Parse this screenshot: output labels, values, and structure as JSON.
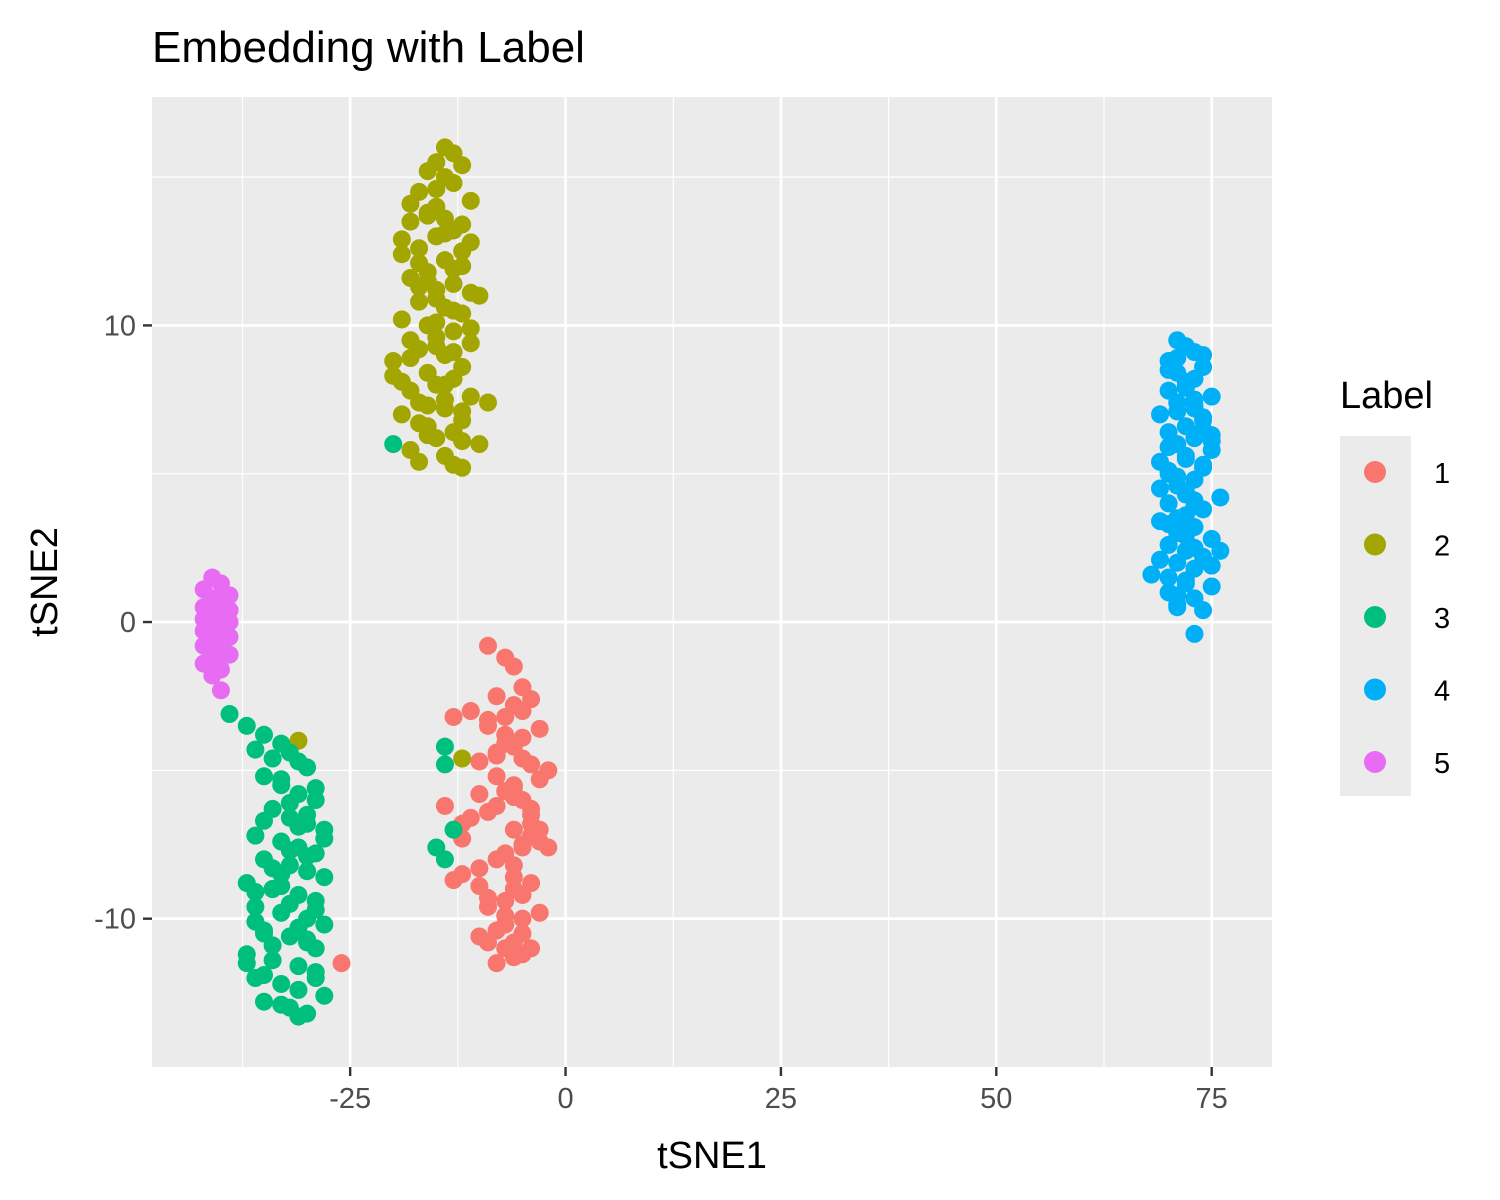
{
  "chart_data": {
    "type": "scatter",
    "title": "Embedding with Label",
    "xlabel": "tSNE1",
    "ylabel": "tSNE2",
    "xlim": [
      -48,
      82
    ],
    "ylim": [
      -15,
      17.7
    ],
    "x_ticks": [
      -25,
      0,
      25,
      50,
      75
    ],
    "x_tick_labels": [
      "-25",
      "0",
      "25",
      "50",
      "75"
    ],
    "y_ticks": [
      -10,
      0,
      10
    ],
    "y_tick_labels": [
      "-10",
      "0",
      "10"
    ],
    "grid": true,
    "legend": {
      "title": "Label",
      "position": "right",
      "entries": [
        {
          "label": "1",
          "color": "#F8766D"
        },
        {
          "label": "2",
          "color": "#A3A500"
        },
        {
          "label": "3",
          "color": "#00BF7D"
        },
        {
          "label": "4",
          "color": "#00B0F6"
        },
        {
          "label": "5",
          "color": "#E76BF3"
        }
      ]
    },
    "series": [
      {
        "name": "1",
        "color": "#F8766D",
        "x": [
          -9,
          -7,
          -6,
          -5,
          -8,
          -6,
          -4,
          -5,
          -7,
          -9,
          -3,
          -5,
          -6,
          -8,
          -10,
          -4,
          -2,
          -3,
          -6,
          -7,
          -5,
          -8,
          -9,
          -11,
          -12,
          -6,
          -4,
          -3,
          -5,
          -7,
          -8,
          -10,
          -12,
          -13,
          -4,
          -6,
          -5,
          -7,
          -9,
          -3,
          -2,
          -4,
          -6,
          -8,
          -5,
          -7,
          -9,
          -11,
          -4,
          -6,
          -3,
          -5,
          -7,
          -8,
          -10,
          -6,
          -4,
          -5,
          -7,
          -9,
          -8,
          -6,
          -5,
          -7,
          -9,
          -10,
          -6,
          -5,
          -4,
          -6,
          -8,
          -7,
          -13,
          -14,
          -12,
          -10,
          -26
        ],
        "y": [
          -0.8,
          -1.2,
          -1.5,
          -2.2,
          -2.5,
          -2.8,
          -2.6,
          -3.0,
          -3.2,
          -3.5,
          -3.6,
          -3.9,
          -4.2,
          -4.4,
          -4.7,
          -4.8,
          -5.0,
          -5.3,
          -5.5,
          -5.7,
          -6.0,
          -6.2,
          -6.4,
          -6.6,
          -6.8,
          -7.0,
          -7.2,
          -7.4,
          -7.6,
          -7.8,
          -8.0,
          -8.3,
          -8.5,
          -8.7,
          -8.8,
          -9.0,
          -9.2,
          -9.4,
          -9.6,
          -7.0,
          -7.6,
          -6.5,
          -5.9,
          -5.2,
          -4.6,
          -3.8,
          -3.3,
          -3.0,
          -6.8,
          -8.6,
          -9.8,
          -10.0,
          -10.2,
          -10.4,
          -10.6,
          -10.8,
          -11.0,
          -11.2,
          -11.0,
          -10.8,
          -11.5,
          -11.3,
          -10.5,
          -9.9,
          -9.3,
          -8.9,
          -8.2,
          -7.5,
          -6.3,
          -5.6,
          -4.5,
          -4.1,
          -3.2,
          -6.2,
          -7.3,
          -5.8,
          -11.5
        ]
      },
      {
        "name": "2",
        "color": "#A3A500",
        "x": [
          -14,
          -13,
          -15,
          -12,
          -16,
          -14,
          -13,
          -17,
          -11,
          -15,
          -16,
          -14,
          -12,
          -18,
          -13,
          -15,
          -11,
          -17,
          -19,
          -14,
          -12,
          -16,
          -18,
          -13,
          -15,
          -10,
          -17,
          -14,
          -12,
          -19,
          -16,
          -13,
          -15,
          -18,
          -11,
          -17,
          -14,
          -20,
          -12,
          -16,
          -13,
          -15,
          -18,
          -11,
          -17,
          -14,
          -19,
          -12,
          -16,
          -13,
          -15,
          -10,
          -18,
          -14,
          -17,
          -12,
          -16,
          -19,
          -13,
          -15,
          -11,
          -17,
          -14,
          -18,
          -12,
          -16,
          -13,
          -15,
          -20,
          -14,
          -17,
          -12,
          -16,
          -19,
          -13,
          -15,
          -11,
          -18,
          -14,
          -12,
          -16,
          -9,
          -13,
          -17,
          -15,
          -12,
          -31
        ],
        "y": [
          16.0,
          15.8,
          15.5,
          15.4,
          15.2,
          15.0,
          14.8,
          14.5,
          14.2,
          14.0,
          13.8,
          13.6,
          13.4,
          13.5,
          13.2,
          13.0,
          12.8,
          12.6,
          12.4,
          12.2,
          12.0,
          11.8,
          11.6,
          11.4,
          11.2,
          11.0,
          10.8,
          10.6,
          10.4,
          10.2,
          10.0,
          9.8,
          9.6,
          9.5,
          9.4,
          9.2,
          9.0,
          8.8,
          8.6,
          8.4,
          8.2,
          8.0,
          7.8,
          7.6,
          7.4,
          7.2,
          7.0,
          6.8,
          6.6,
          6.4,
          6.2,
          6.0,
          5.8,
          5.6,
          5.4,
          5.2,
          7.3,
          8.1,
          9.1,
          10.1,
          11.1,
          12.1,
          13.1,
          14.1,
          12.5,
          11.5,
          10.5,
          9.3,
          8.3,
          7.5,
          6.7,
          6.1,
          13.7,
          12.9,
          11.9,
          10.9,
          9.9,
          8.9,
          8.0,
          7.1,
          6.3,
          7.4,
          5.3,
          11.3,
          14.6,
          -4.6,
          -4.0
        ]
      },
      {
        "name": "3",
        "color": "#00BF7D",
        "x": [
          -39,
          -37,
          -35,
          -33,
          -36,
          -34,
          -32,
          -30,
          -35,
          -33,
          -31,
          -29,
          -34,
          -32,
          -30,
          -28,
          -36,
          -33,
          -31,
          -29,
          -35,
          -32,
          -30,
          -28,
          -37,
          -34,
          -31,
          -29,
          -36,
          -33,
          -30,
          -28,
          -35,
          -32,
          -30,
          -29,
          -37,
          -34,
          -31,
          -29,
          -36,
          -33,
          -31,
          -28,
          -35,
          -32,
          -30,
          -29,
          -37,
          -34,
          -31,
          -29,
          -36,
          -33,
          -30,
          -28,
          -35,
          -32,
          -33,
          -31,
          -34,
          -32,
          -30,
          -35,
          -33,
          -31,
          -36,
          -34,
          -32,
          -30,
          -29,
          -31,
          -33,
          -35,
          -14,
          -13,
          -15,
          -14,
          -14,
          -20
        ],
        "y": [
          -3.1,
          -3.5,
          -3.8,
          -4.1,
          -4.3,
          -4.6,
          -4.4,
          -4.9,
          -5.2,
          -5.5,
          -5.8,
          -6.0,
          -6.3,
          -6.6,
          -6.8,
          -7.0,
          -7.2,
          -7.4,
          -7.6,
          -7.8,
          -8.0,
          -8.2,
          -8.4,
          -8.6,
          -8.8,
          -9.0,
          -9.2,
          -9.4,
          -9.6,
          -9.8,
          -10.0,
          -10.2,
          -10.4,
          -10.6,
          -10.8,
          -11.0,
          -11.2,
          -11.4,
          -11.6,
          -11.8,
          -12.0,
          -12.2,
          -12.4,
          -12.6,
          -12.8,
          -13.0,
          -13.2,
          -12.0,
          -11.5,
          -10.9,
          -10.3,
          -9.7,
          -9.1,
          -8.5,
          -7.9,
          -7.3,
          -6.7,
          -6.1,
          -5.3,
          -4.7,
          -8.3,
          -9.5,
          -10.7,
          -11.9,
          -12.9,
          -13.3,
          -10.1,
          -9.0,
          -7.7,
          -6.5,
          -5.6,
          -6.9,
          -8.9,
          -10.5,
          -4.2,
          -7.0,
          -7.6,
          -8.0,
          -4.8,
          6.0
        ]
      },
      {
        "name": "4",
        "color": "#00B0F6",
        "x": [
          71,
          72,
          73,
          70,
          74,
          71,
          73,
          72,
          70,
          75,
          71,
          73,
          69,
          74,
          72,
          70,
          73,
          71,
          75,
          72,
          69,
          74,
          70,
          73,
          71,
          72,
          76,
          70,
          74,
          72,
          69,
          73,
          71,
          75,
          70,
          72,
          74,
          71,
          73,
          68,
          72,
          75,
          70,
          73,
          71,
          74,
          69,
          72,
          73,
          70,
          75,
          71,
          72,
          74,
          70,
          73,
          71,
          69,
          72,
          74,
          73,
          70,
          71,
          75,
          72,
          73,
          71,
          70,
          74,
          72,
          73,
          71,
          72,
          70,
          74,
          73,
          71,
          75,
          72,
          76
        ],
        "y": [
          9.5,
          9.3,
          9.1,
          8.8,
          8.6,
          8.4,
          8.2,
          8.0,
          7.8,
          7.6,
          7.4,
          7.2,
          7.0,
          6.8,
          6.6,
          6.4,
          6.2,
          6.0,
          5.8,
          5.6,
          5.4,
          5.2,
          5.0,
          4.8,
          4.6,
          4.4,
          4.2,
          4.0,
          3.8,
          3.6,
          3.4,
          3.2,
          3.0,
          2.8,
          2.6,
          2.4,
          2.2,
          2.0,
          1.8,
          1.6,
          1.4,
          1.2,
          1.0,
          0.8,
          0.6,
          0.4,
          2.1,
          3.1,
          4.1,
          5.1,
          6.1,
          7.1,
          8.1,
          9.0,
          1.5,
          2.5,
          3.5,
          4.5,
          5.5,
          6.5,
          7.5,
          8.5,
          0.9,
          1.9,
          2.9,
          3.9,
          4.9,
          5.9,
          6.9,
          7.9,
          -0.4,
          0.5,
          1.3,
          3.3,
          5.3,
          7.3,
          8.9,
          6.3,
          4.3,
          2.4
        ]
      },
      {
        "name": "5",
        "color": "#E76BF3",
        "x": [
          -41,
          -40,
          -42,
          -39,
          -41,
          -40,
          -42,
          -39,
          -40,
          -41,
          -42,
          -39,
          -40,
          -41,
          -42,
          -40,
          -39,
          -41,
          -40,
          -42,
          -41,
          -40,
          -39,
          -41,
          -42,
          -40,
          -41,
          -40,
          -40
        ],
        "y": [
          1.5,
          1.3,
          1.1,
          0.9,
          0.8,
          0.6,
          0.5,
          0.4,
          0.3,
          0.2,
          0.1,
          0.0,
          -0.1,
          -0.2,
          -0.3,
          -0.4,
          -0.5,
          -0.6,
          -0.7,
          -0.8,
          -0.9,
          -1.0,
          -1.1,
          -1.2,
          -1.4,
          -1.6,
          -1.8,
          -2.3,
          0.7
        ]
      }
    ]
  }
}
